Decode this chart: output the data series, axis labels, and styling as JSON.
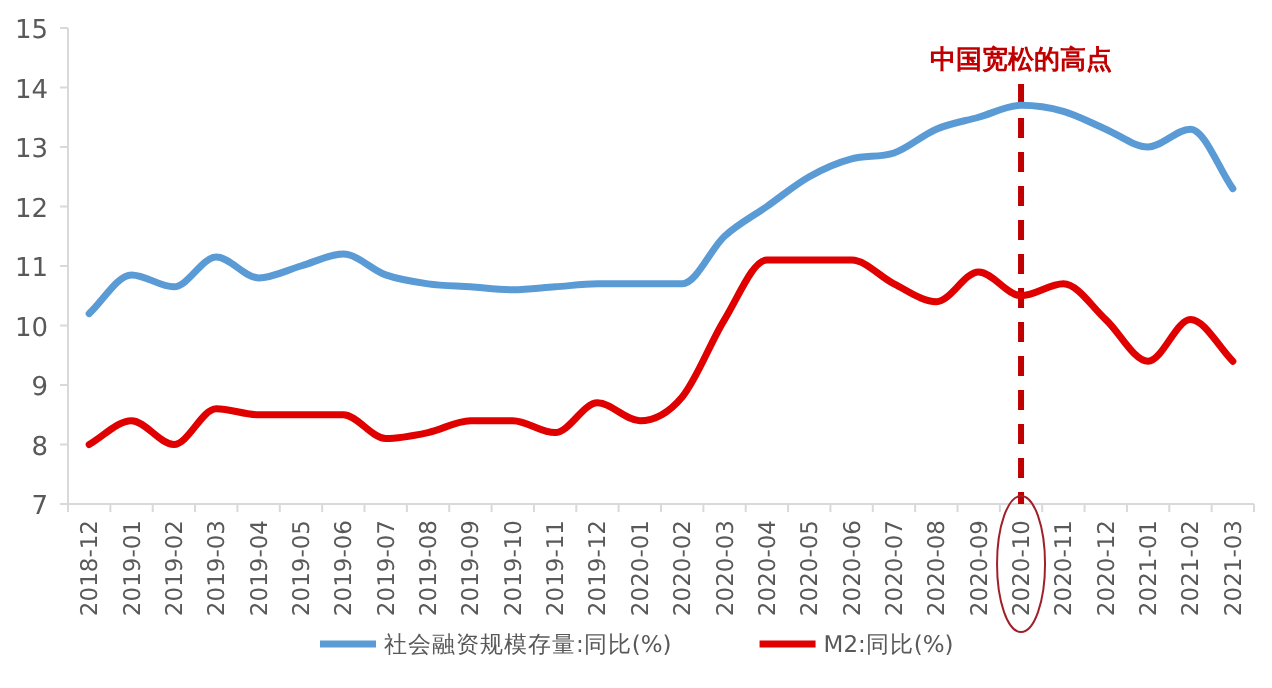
{
  "chart_data": {
    "type": "line",
    "categories": [
      "2018-12",
      "2019-01",
      "2019-02",
      "2019-03",
      "2019-04",
      "2019-05",
      "2019-06",
      "2019-07",
      "2019-08",
      "2019-09",
      "2019-10",
      "2019-11",
      "2019-12",
      "2020-01",
      "2020-02",
      "2020-03",
      "2020-04",
      "2020-05",
      "2020-06",
      "2020-07",
      "2020-08",
      "2020-09",
      "2020-10",
      "2020-11",
      "2020-12",
      "2021-01",
      "2021-02",
      "2021-03"
    ],
    "series": [
      {
        "name": "社会融资规模存量:同比(%)",
        "color": "#5b9bd5",
        "values": [
          10.2,
          10.85,
          10.65,
          11.15,
          10.8,
          11.0,
          11.2,
          10.85,
          10.7,
          10.65,
          10.6,
          10.65,
          10.7,
          10.7,
          10.7,
          11.5,
          12.0,
          12.5,
          12.8,
          12.9,
          13.3,
          13.5,
          13.7,
          13.6,
          13.3,
          13.0,
          13.3,
          12.3
        ]
      },
      {
        "name": "M2:同比(%)",
        "color": "#e00000",
        "values": [
          8.0,
          8.4,
          8.0,
          8.6,
          8.5,
          8.5,
          8.5,
          8.1,
          8.2,
          8.4,
          8.4,
          8.2,
          8.7,
          8.4,
          8.8,
          10.1,
          11.1,
          11.1,
          11.1,
          10.7,
          10.4,
          10.9,
          10.5,
          10.7,
          10.1,
          9.4,
          10.1,
          9.4
        ]
      }
    ],
    "ylim": [
      7,
      15
    ],
    "yticks": [
      7,
      8,
      9,
      10,
      11,
      12,
      13,
      14,
      15
    ],
    "ref_lines": [
      {
        "axis": "x",
        "value": "2020-10",
        "label": "中国宽松的高点",
        "color": "#c00000",
        "line_style": "dashed"
      }
    ],
    "grid": false,
    "legend": "bottom",
    "marker": "none",
    "line_style": "solid"
  }
}
